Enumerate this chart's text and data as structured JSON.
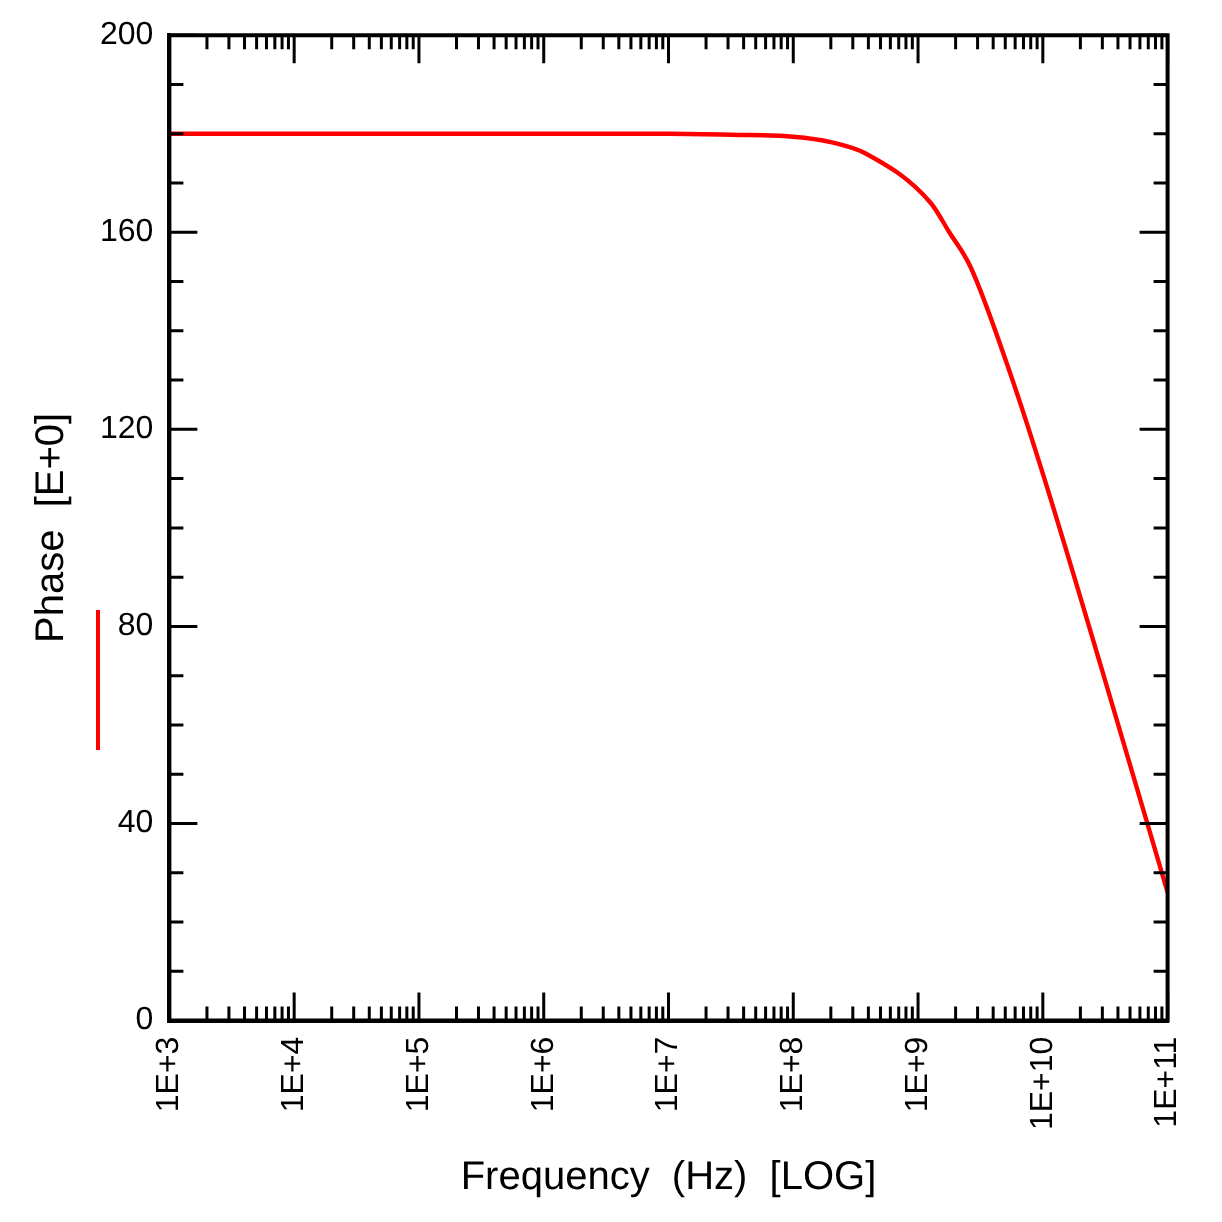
{
  "chart_data": {
    "type": "line",
    "xlabel": "Frequency  (Hz)  [LOG]",
    "ylabel": "Phase  [E+0]",
    "log": "x",
    "grid": false,
    "legend": false,
    "marker": "none",
    "line_style": "solid",
    "xlim": [
      1000,
      100000000000
    ],
    "ylim": [
      0,
      200
    ],
    "xticks": [
      {
        "value": 1000,
        "label": "1E+3"
      },
      {
        "value": 2000,
        "label": null
      },
      {
        "value": 3000,
        "label": null
      },
      {
        "value": 4000,
        "label": null
      },
      {
        "value": 5000,
        "label": null
      },
      {
        "value": 6000,
        "label": null
      },
      {
        "value": 7000,
        "label": null
      },
      {
        "value": 8000,
        "label": null
      },
      {
        "value": 9000,
        "label": null
      },
      {
        "value": 10000,
        "label": "1E+4"
      },
      {
        "value": 20000,
        "label": null
      },
      {
        "value": 30000,
        "label": null
      },
      {
        "value": 40000,
        "label": null
      },
      {
        "value": 50000,
        "label": null
      },
      {
        "value": 60000,
        "label": null
      },
      {
        "value": 70000,
        "label": null
      },
      {
        "value": 80000,
        "label": null
      },
      {
        "value": 90000,
        "label": null
      },
      {
        "value": 100000,
        "label": "1E+5"
      },
      {
        "value": 200000,
        "label": null
      },
      {
        "value": 300000,
        "label": null
      },
      {
        "value": 400000,
        "label": null
      },
      {
        "value": 500000,
        "label": null
      },
      {
        "value": 600000,
        "label": null
      },
      {
        "value": 700000,
        "label": null
      },
      {
        "value": 800000,
        "label": null
      },
      {
        "value": 900000,
        "label": null
      },
      {
        "value": 1000000,
        "label": "1E+6"
      },
      {
        "value": 2000000,
        "label": null
      },
      {
        "value": 3000000,
        "label": null
      },
      {
        "value": 4000000,
        "label": null
      },
      {
        "value": 5000000,
        "label": null
      },
      {
        "value": 6000000,
        "label": null
      },
      {
        "value": 7000000,
        "label": null
      },
      {
        "value": 8000000,
        "label": null
      },
      {
        "value": 9000000,
        "label": null
      },
      {
        "value": 10000000,
        "label": "1E+7"
      },
      {
        "value": 20000000,
        "label": null
      },
      {
        "value": 30000000,
        "label": null
      },
      {
        "value": 40000000,
        "label": null
      },
      {
        "value": 50000000,
        "label": null
      },
      {
        "value": 60000000,
        "label": null
      },
      {
        "value": 70000000,
        "label": null
      },
      {
        "value": 80000000,
        "label": null
      },
      {
        "value": 90000000,
        "label": null
      },
      {
        "value": 100000000,
        "label": "1E+8"
      },
      {
        "value": 200000000,
        "label": null
      },
      {
        "value": 300000000,
        "label": null
      },
      {
        "value": 400000000,
        "label": null
      },
      {
        "value": 500000000,
        "label": null
      },
      {
        "value": 600000000,
        "label": null
      },
      {
        "value": 700000000,
        "label": null
      },
      {
        "value": 800000000,
        "label": null
      },
      {
        "value": 900000000,
        "label": null
      },
      {
        "value": 1000000000,
        "label": "1E+9"
      },
      {
        "value": 2000000000,
        "label": null
      },
      {
        "value": 3000000000,
        "label": null
      },
      {
        "value": 4000000000,
        "label": null
      },
      {
        "value": 5000000000,
        "label": null
      },
      {
        "value": 6000000000,
        "label": null
      },
      {
        "value": 7000000000,
        "label": null
      },
      {
        "value": 8000000000,
        "label": null
      },
      {
        "value": 9000000000,
        "label": null
      },
      {
        "value": 10000000000,
        "label": "1E+10"
      },
      {
        "value": 20000000000,
        "label": null
      },
      {
        "value": 30000000000,
        "label": null
      },
      {
        "value": 40000000000,
        "label": null
      },
      {
        "value": 50000000000,
        "label": null
      },
      {
        "value": 60000000000,
        "label": null
      },
      {
        "value": 70000000000,
        "label": null
      },
      {
        "value": 80000000000,
        "label": null
      },
      {
        "value": 90000000000,
        "label": null
      },
      {
        "value": 100000000000,
        "label": "1E+11"
      }
    ],
    "yticks": [
      0,
      {
        "value": 10,
        "label": null
      },
      {
        "value": 20,
        "label": null
      },
      {
        "value": 30,
        "label": null
      },
      40,
      {
        "value": 50,
        "label": null
      },
      {
        "value": 60,
        "label": null
      },
      {
        "value": 70,
        "label": null
      },
      80,
      {
        "value": 90,
        "label": null
      },
      {
        "value": 100,
        "label": null
      },
      {
        "value": 110,
        "label": null
      },
      120,
      {
        "value": 130,
        "label": null
      },
      {
        "value": 140,
        "label": null
      },
      {
        "value": 150,
        "label": null
      },
      160,
      {
        "value": 170,
        "label": null
      },
      {
        "value": 180,
        "label": null
      },
      {
        "value": 190,
        "label": null
      },
      200
    ],
    "x": [
      1000,
      10000000,
      31600000,
      100000000,
      200000000,
      380000000,
      1260000000,
      1780000000,
      2630000000,
      5370000000,
      10000000000,
      31600000000,
      100000000000
    ],
    "series": [
      {
        "color": "#ff0000",
        "values": [
          180,
          180,
          179.8,
          179.4,
          178.3,
          176,
          166,
          160,
          153,
          132,
          111,
          69,
          26
        ]
      }
    ]
  }
}
